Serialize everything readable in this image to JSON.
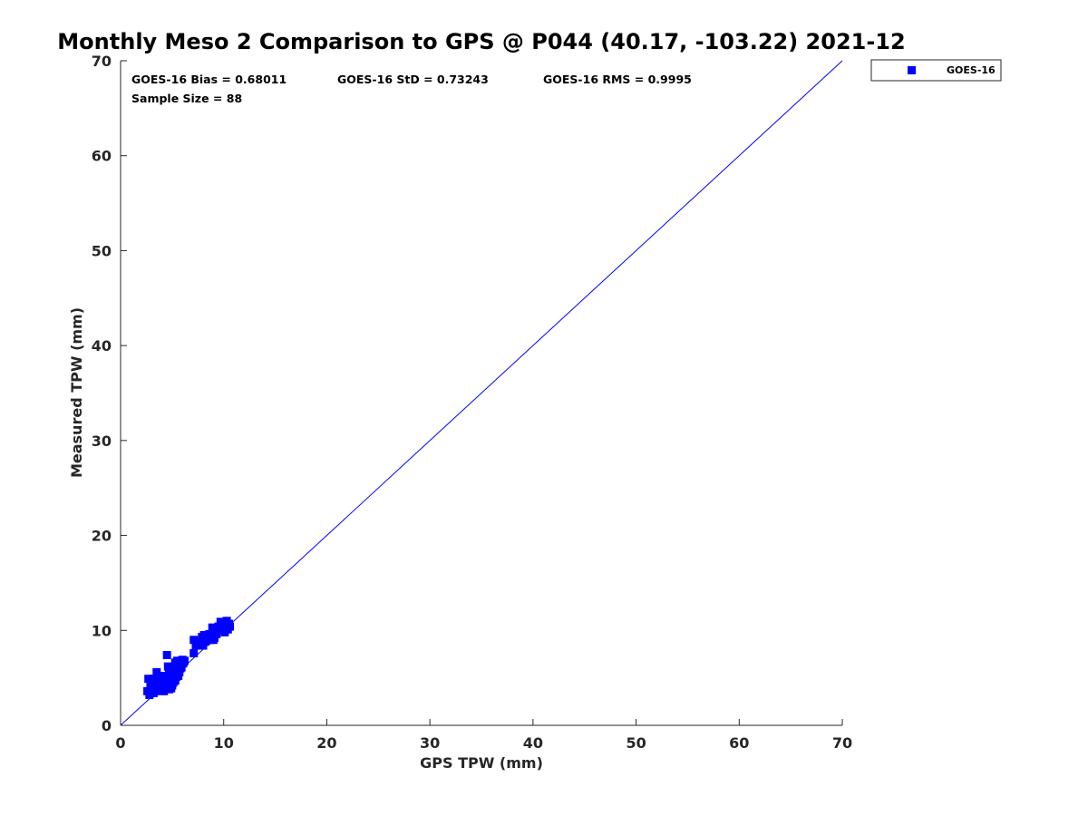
{
  "chart_data": {
    "type": "scatter",
    "title": "Monthly Meso 2 Comparison to GPS @ P044 (40.17, -103.22) 2021-12",
    "xlabel": "GPS TPW (mm)",
    "ylabel": "Measured TPW (mm)",
    "xlim": [
      0,
      70
    ],
    "ylim": [
      0,
      70
    ],
    "xticks": [
      "0",
      "10",
      "20",
      "30",
      "40",
      "50",
      "60",
      "70"
    ],
    "yticks": [
      "0",
      "10",
      "20",
      "30",
      "40",
      "50",
      "60",
      "70"
    ],
    "grid": false,
    "legend_position": "outside-top-right",
    "stats": {
      "bias": "GOES-16 Bias = 0.68011",
      "std": "GOES-16 StD = 0.73243",
      "rms": "GOES-16 RMS = 0.9995",
      "sample_size": "Sample Size = 88"
    },
    "reference_line": {
      "x": [
        0,
        70
      ],
      "y": [
        0,
        70
      ],
      "color": "#0000ff"
    },
    "series": [
      {
        "name": "GOES-16",
        "color": "#0000ff",
        "marker": "square",
        "points": [
          [
            2.6,
            3.6
          ],
          [
            2.7,
            4.9
          ],
          [
            2.8,
            3.2
          ],
          [
            2.9,
            4.2
          ],
          [
            3.0,
            3.8
          ],
          [
            3.1,
            4.5
          ],
          [
            3.2,
            3.4
          ],
          [
            3.3,
            4.0
          ],
          [
            3.4,
            4.7
          ],
          [
            3.5,
            5.6
          ],
          [
            3.6,
            3.9
          ],
          [
            3.7,
            4.3
          ],
          [
            3.8,
            4.1
          ],
          [
            3.9,
            3.7
          ],
          [
            4.0,
            4.6
          ],
          [
            4.1,
            4.0
          ],
          [
            4.2,
            4.4
          ],
          [
            4.3,
            3.9
          ],
          [
            4.4,
            4.8
          ],
          [
            4.5,
            5.2
          ],
          [
            4.6,
            4.1
          ],
          [
            4.7,
            3.8
          ],
          [
            4.8,
            4.3
          ],
          [
            4.5,
            7.4
          ],
          [
            4.6,
            6.2
          ],
          [
            4.7,
            5.8
          ],
          [
            4.8,
            5.0
          ],
          [
            4.9,
            4.6
          ],
          [
            5.0,
            5.4
          ],
          [
            5.0,
            4.2
          ],
          [
            5.1,
            6.0
          ],
          [
            5.2,
            5.3
          ],
          [
            5.3,
            4.7
          ],
          [
            5.3,
            6.6
          ],
          [
            5.4,
            5.1
          ],
          [
            5.5,
            5.9
          ],
          [
            5.6,
            6.4
          ],
          [
            5.7,
            5.6
          ],
          [
            5.8,
            6.7
          ],
          [
            5.9,
            6.1
          ],
          [
            6.0,
            6.5
          ],
          [
            6.2,
            6.8
          ],
          [
            3.2,
            4.9
          ],
          [
            3.4,
            3.6
          ],
          [
            3.6,
            4.5
          ],
          [
            4.0,
            5.2
          ],
          [
            4.2,
            3.6
          ],
          [
            4.4,
            4.5
          ],
          [
            4.9,
            3.9
          ],
          [
            5.1,
            4.5
          ],
          [
            5.2,
            5.8
          ],
          [
            5.4,
            6.2
          ],
          [
            5.6,
            5.2
          ],
          [
            5.8,
            6.0
          ],
          [
            2.9,
            3.9
          ],
          [
            3.3,
            4.4
          ],
          [
            3.9,
            4.3
          ],
          [
            4.8,
            5.5
          ],
          [
            5.5,
            6.8
          ],
          [
            6.1,
            6.6
          ],
          [
            7.1,
            7.6
          ],
          [
            7.1,
            9.0
          ],
          [
            7.3,
            8.4
          ],
          [
            7.6,
            8.9
          ],
          [
            7.8,
            8.7
          ],
          [
            8.0,
            8.4
          ],
          [
            8.1,
            9.5
          ],
          [
            8.3,
            8.9
          ],
          [
            8.5,
            9.3
          ],
          [
            8.7,
            9.0
          ],
          [
            8.9,
            10.3
          ],
          [
            9.1,
            9.2
          ],
          [
            9.3,
            9.6
          ],
          [
            9.5,
            10.4
          ],
          [
            9.7,
            10.9
          ],
          [
            9.9,
            10.6
          ],
          [
            10.1,
            9.8
          ],
          [
            10.3,
            11.0
          ],
          [
            10.5,
            10.7
          ],
          [
            10.6,
            10.4
          ],
          [
            8.2,
            8.8
          ],
          [
            9.0,
            9.0
          ],
          [
            9.6,
            10.2
          ],
          [
            10.0,
            10.8
          ],
          [
            7.9,
            9.3
          ],
          [
            8.6,
            9.6
          ],
          [
            10.4,
            10.1
          ],
          [
            6.0,
            6.9
          ]
        ]
      }
    ]
  }
}
